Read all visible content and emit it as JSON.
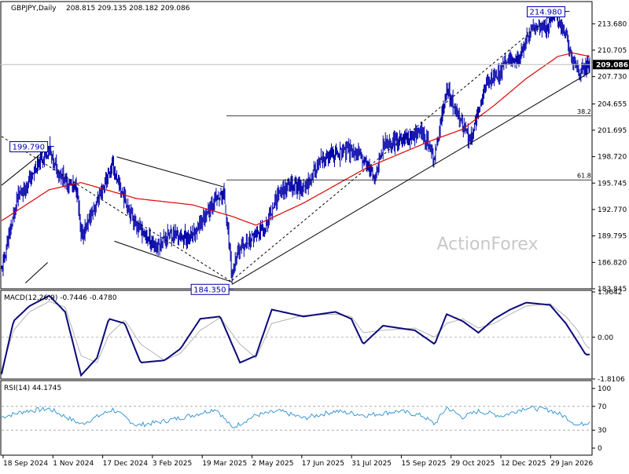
{
  "header": {
    "symbol": "GBPJPY,Daily",
    "ohlc": "208.815 209.135 208.182 209.086"
  },
  "watermark": "ActionForex",
  "price_panel": {
    "y_ticks": [
      "213.680",
      "210.705",
      "207.730",
      "204.655",
      "201.695",
      "198.720",
      "195.745",
      "192.770",
      "189.795",
      "186.820",
      "183.845"
    ],
    "current_price_label": "209.086",
    "annotations": {
      "high": "214.980",
      "swing_high": "199.790",
      "low": "184.350",
      "fib_382": "38.2",
      "fib_618": "61.8"
    }
  },
  "macd_panel": {
    "title": "MACD(12,26,9) -0.7446 -0.4780",
    "y_ticks": [
      "1.9642",
      "0.00",
      "-1.8106"
    ]
  },
  "rsi_panel": {
    "title": "RSI(14) 44.1745",
    "y_ticks": [
      "100",
      "70",
      "30",
      "0"
    ]
  },
  "x_ticks": [
    "18 Sep 2024",
    "1 Nov 2024",
    "17 Dec 2024",
    "3 Feb 2025",
    "19 Mar 2025",
    "2 May 2025",
    "17 Jun 2025",
    "31 Jul 2025",
    "15 Sep 2025",
    "29 Oct 2025",
    "12 Dec 2025",
    "29 Jan 2026"
  ],
  "colors": {
    "candles": "#0000aa",
    "ema": "#e00000",
    "macd": "#0a0a7a",
    "signal": "#b4b4b4",
    "rsi": "#2a8fd0",
    "trendline": "#000000"
  },
  "chart_data": [
    {
      "type": "candlestick",
      "title": "GBPJPY,Daily",
      "ylim": [
        183.845,
        216.0
      ],
      "anchors_x": [
        0,
        20,
        45,
        60,
        65,
        80,
        95,
        100,
        140,
        145,
        170,
        195,
        210,
        240,
        265,
        280,
        290,
        300,
        330,
        350,
        370,
        380,
        400,
        420,
        440,
        460,
        470,
        480,
        500,
        530,
        545,
        560,
        580,
        590,
        610,
        625,
        640,
        650,
        660,
        670,
        685,
        695,
        710,
        718,
        725,
        740
      ],
      "anchors_close": [
        186.0,
        194.0,
        197.5,
        199.8,
        198.0,
        196.0,
        195.0,
        189.5,
        197.8,
        196.0,
        191.0,
        188.5,
        190.0,
        189.5,
        193.5,
        194.5,
        185.5,
        188.5,
        190.5,
        195.0,
        195.5,
        195.0,
        198.0,
        199.0,
        199.5,
        198.0,
        196.0,
        200.0,
        200.5,
        201.5,
        198.5,
        206.5,
        202.0,
        200.5,
        207.0,
        208.0,
        210.0,
        209.5,
        212.0,
        213.5,
        213.0,
        214.98,
        212.5,
        209.5,
        208.5,
        209.086
      ],
      "ema_anchors_x": [
        0,
        60,
        100,
        170,
        240,
        290,
        320,
        380,
        420,
        460,
        500,
        540,
        580,
        620,
        660,
        700,
        718,
        740
      ],
      "ema_values": [
        191.5,
        195.0,
        195.8,
        194.0,
        193.3,
        192.0,
        191.0,
        193.5,
        195.5,
        197.5,
        199.0,
        200.5,
        201.8,
        204.5,
        207.5,
        210.0,
        210.4,
        210.0
      ],
      "fib_levels": {
        "38.2": 203.3,
        "61.8": 196.1
      },
      "high": 214.98,
      "swing_high": 199.79,
      "low": 184.35,
      "last": 209.086
    },
    {
      "type": "line",
      "title": "MACD(12,26,9)",
      "ylim": [
        -1.8106,
        1.9642
      ],
      "anchors_x": [
        0,
        15,
        35,
        60,
        80,
        100,
        120,
        135,
        155,
        175,
        205,
        225,
        250,
        275,
        300,
        320,
        340,
        380,
        420,
        440,
        455,
        480,
        520,
        545,
        560,
        580,
        600,
        620,
        640,
        660,
        690,
        710,
        725,
        735,
        740
      ],
      "macd_values": [
        -1.6,
        0.7,
        1.35,
        1.8,
        1.1,
        -1.65,
        -0.9,
        0.8,
        0.6,
        -1.1,
        -1.0,
        -0.5,
        0.8,
        0.9,
        -1.1,
        -0.8,
        1.2,
        0.9,
        1.1,
        0.8,
        -0.3,
        0.5,
        0.3,
        -0.3,
        1.0,
        0.7,
        0.2,
        0.8,
        1.2,
        1.5,
        1.4,
        0.6,
        -0.2,
        -0.75,
        -0.7446
      ],
      "signal_values": [
        -1.4,
        0.3,
        1.1,
        1.55,
        1.3,
        -0.8,
        -1.1,
        0.1,
        0.75,
        -0.3,
        -1.0,
        -0.7,
        0.3,
        0.85,
        -0.3,
        -0.9,
        0.6,
        0.95,
        1.0,
        0.9,
        0.2,
        0.3,
        0.4,
        0.0,
        0.6,
        0.8,
        0.4,
        0.6,
        1.0,
        1.35,
        1.45,
        0.9,
        0.3,
        -0.35,
        -0.478
      ]
    },
    {
      "type": "line",
      "title": "RSI(14)",
      "ylim": [
        0,
        100
      ],
      "levels": [
        70,
        30
      ],
      "anchors_x": [
        0,
        30,
        60,
        100,
        140,
        170,
        200,
        240,
        270,
        290,
        320,
        350,
        380,
        420,
        460,
        500,
        530,
        545,
        560,
        580,
        600,
        630,
        660,
        690,
        710,
        725,
        740
      ],
      "rsi_values": [
        52,
        62,
        66,
        40,
        65,
        38,
        44,
        55,
        66,
        34,
        55,
        62,
        50,
        62,
        55,
        62,
        54,
        40,
        68,
        52,
        62,
        54,
        68,
        64,
        52,
        38,
        44.1745
      ]
    }
  ]
}
